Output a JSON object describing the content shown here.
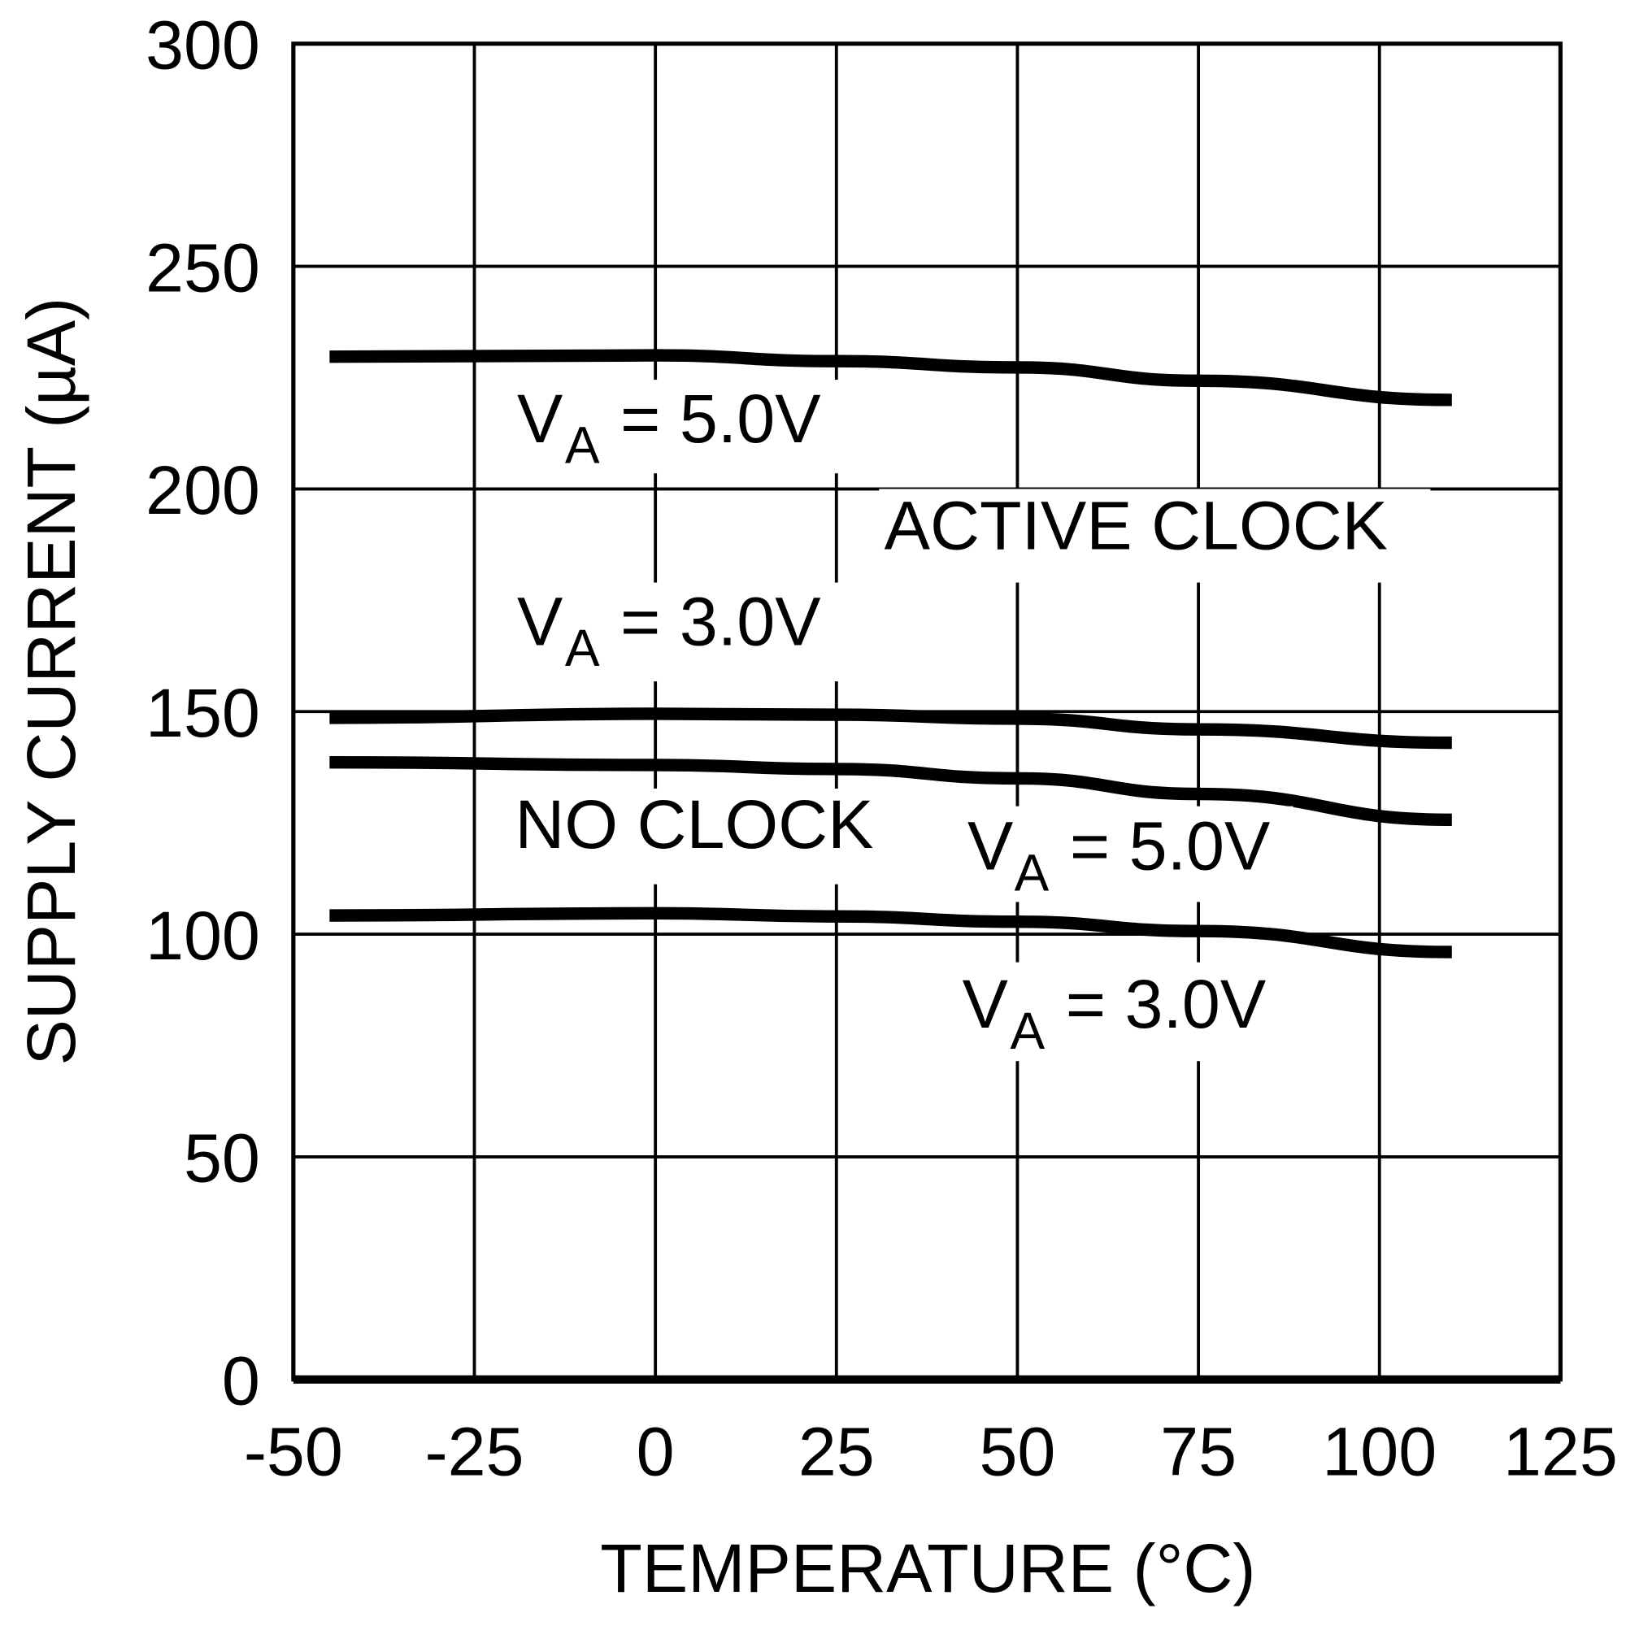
{
  "chart_data": {
    "type": "line",
    "title": "",
    "xlabel": "TEMPERATURE (°C)",
    "ylabel": "SUPPLY CURRENT (µA)",
    "xlim": [
      -50,
      125
    ],
    "ylim": [
      0,
      300
    ],
    "xticks": [
      "-50",
      "-25",
      "0",
      "25",
      "50",
      "75",
      "100",
      "125"
    ],
    "yticks": [
      "0",
      "50",
      "100",
      "150",
      "200",
      "250",
      "300"
    ],
    "grid": true,
    "line_color": "#000000",
    "x": [
      -45,
      0,
      25,
      50,
      75,
      110
    ],
    "series": [
      {
        "values": [
          229.7,
          230.0,
          228.7,
          227.3,
          224.3,
          220.0
        ]
      },
      {
        "values": [
          148.6,
          149.5,
          149.3,
          148.4,
          146.0,
          143.0
        ]
      },
      {
        "values": [
          138.6,
          138.0,
          137.1,
          135.0,
          131.5,
          125.7
        ]
      },
      {
        "values": [
          104.2,
          104.7,
          104.0,
          102.8,
          100.7,
          96.0
        ]
      }
    ],
    "annotations": [
      {
        "main": "V",
        "sub": "A",
        "rest": " = 5.0V"
      },
      {
        "text": "ACTIVE CLOCK"
      },
      {
        "main": "V",
        "sub": "A",
        "rest": " = 3.0V"
      },
      {
        "text": "NO CLOCK"
      },
      {
        "main": "V",
        "sub": "A",
        "rest": " = 5.0V"
      },
      {
        "main": "V",
        "sub": "A",
        "rest": " = 3.0V"
      }
    ]
  }
}
